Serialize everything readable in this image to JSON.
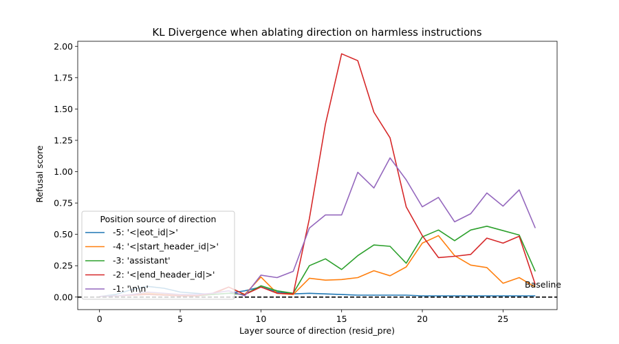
{
  "chart_data": {
    "type": "line",
    "title": "KL Divergence when ablating direction on harmless instructions",
    "xlabel": "Layer source of direction (resid_pre)",
    "ylabel": "Refusal score",
    "xlim": [
      -1.35,
      28.35
    ],
    "ylim": [
      -0.1,
      2.04
    ],
    "xticks": [
      0,
      5,
      10,
      15,
      20,
      25
    ],
    "yticks": [
      0.0,
      0.25,
      0.5,
      0.75,
      1.0,
      1.25,
      1.5,
      1.75,
      2.0
    ],
    "ytick_labels": [
      "0.00",
      "0.25",
      "0.50",
      "0.75",
      "1.00",
      "1.25",
      "1.50",
      "1.75",
      "2.00"
    ],
    "x": [
      0,
      1,
      2,
      3,
      4,
      5,
      6,
      7,
      8,
      9,
      10,
      11,
      12,
      13,
      14,
      15,
      16,
      17,
      18,
      19,
      20,
      21,
      22,
      23,
      24,
      25,
      26,
      27
    ],
    "series": [
      {
        "name": "-5: '<|eot_id|>'",
        "color": "#1f77b4",
        "values": [
          0.005,
          0.02,
          0.06,
          0.085,
          0.07,
          0.04,
          0.03,
          0.02,
          0.03,
          0.05,
          0.08,
          0.04,
          0.025,
          0.03,
          0.025,
          0.02,
          0.015,
          0.015,
          0.015,
          0.015,
          0.01,
          0.01,
          0.01,
          0.01,
          0.01,
          0.01,
          0.01,
          0.01
        ]
      },
      {
        "name": "-4: '<|start_header_id|>'",
        "color": "#ff7f0e",
        "values": [
          0.005,
          0.01,
          0.02,
          0.03,
          0.02,
          0.015,
          0.01,
          0.02,
          0.08,
          0.02,
          0.16,
          0.03,
          0.02,
          0.15,
          0.135,
          0.14,
          0.155,
          0.21,
          0.17,
          0.24,
          0.43,
          0.49,
          0.33,
          0.255,
          0.235,
          0.11,
          0.155,
          0.08
        ]
      },
      {
        "name": "-3: 'assistant'",
        "color": "#2ca02c",
        "values": [
          0.005,
          0.01,
          0.015,
          0.02,
          0.015,
          0.01,
          0.01,
          0.02,
          0.03,
          0.02,
          0.09,
          0.05,
          0.03,
          0.25,
          0.305,
          0.22,
          0.33,
          0.415,
          0.405,
          0.27,
          0.48,
          0.535,
          0.45,
          0.535,
          0.565,
          0.53,
          0.495,
          0.205
        ]
      },
      {
        "name": "-2: '<|end_header_id|>'",
        "color": "#d62728",
        "values": [
          0.005,
          0.01,
          0.015,
          0.02,
          0.015,
          0.01,
          0.01,
          0.03,
          0.08,
          0.02,
          0.08,
          0.03,
          0.025,
          0.625,
          1.38,
          1.94,
          1.885,
          1.475,
          1.27,
          0.72,
          0.49,
          0.315,
          0.325,
          0.34,
          0.47,
          0.43,
          0.485,
          0.1
        ]
      },
      {
        "name": "-1: '\\n\\n'",
        "color": "#9467bd",
        "values": [
          0.005,
          0.01,
          0.02,
          0.04,
          0.03,
          0.02,
          0.02,
          0.03,
          0.05,
          0.01,
          0.175,
          0.155,
          0.205,
          0.55,
          0.655,
          0.655,
          0.995,
          0.87,
          1.11,
          0.935,
          0.72,
          0.795,
          0.6,
          0.665,
          0.83,
          0.725,
          0.855,
          0.55
        ]
      }
    ],
    "baseline": {
      "value": 0.0,
      "label": "Baseline",
      "style": "dashed",
      "color": "#000000"
    },
    "legend": {
      "title": "Position source of direction",
      "placement": "lower-left"
    }
  }
}
